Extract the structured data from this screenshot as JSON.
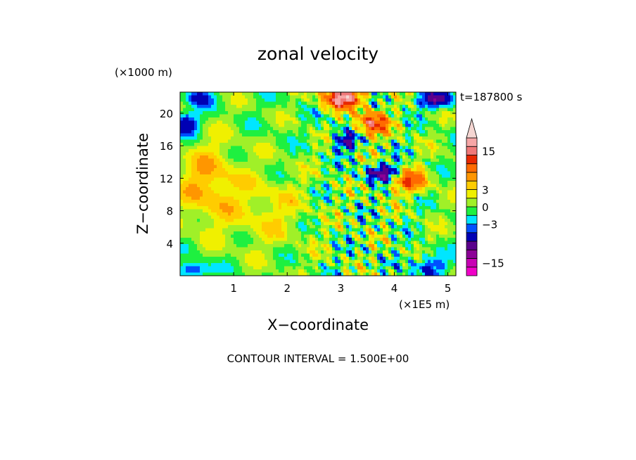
{
  "chart_data": {
    "type": "heatmap",
    "title": "zonal velocity",
    "time_label": "t=187800 s",
    "xlabel": "X−coordinate",
    "ylabel": "Z−coordinate",
    "x_multiplier": "(×1E5 m)",
    "y_multiplier": "(×1000 m)",
    "xlim": [
      0,
      5.15
    ],
    "ylim": [
      0,
      22.6
    ],
    "x_ticks": [
      1,
      2,
      3,
      4,
      5
    ],
    "x_tick_labels": [
      "1",
      "2",
      "3",
      "4",
      "5"
    ],
    "y_ticks": [
      4,
      8,
      12,
      16,
      20
    ],
    "y_tick_labels": [
      "4",
      "8",
      "12",
      "16",
      "20"
    ],
    "contour_interval": "CONTOUR INTERVAL = 1.500E+00",
    "colorbar": {
      "levels": [
        -19.5,
        -16.5,
        -13.5,
        -10.5,
        -7.5,
        -4.5,
        -3,
        -1.5,
        0,
        1.5,
        3,
        4.5,
        7.5,
        10.5,
        13.5,
        16.5,
        19.5
      ],
      "colors": [
        "#f000c8",
        "#c800b4",
        "#8c0096",
        "#5a008c",
        "#0000b4",
        "#0050ff",
        "#00e6ff",
        "#1ef040",
        "#a0f028",
        "#f0f000",
        "#ffcc00",
        "#ff9600",
        "#ff6a00",
        "#e82800",
        "#f07878",
        "#f6a6a6",
        "#f5d6d2"
      ],
      "extend": "max",
      "tick_values": [
        15,
        3,
        0,
        -3,
        -15
      ],
      "tick_labels": [
        "15",
        "3",
        "0",
        "−3",
        "−15"
      ]
    }
  }
}
